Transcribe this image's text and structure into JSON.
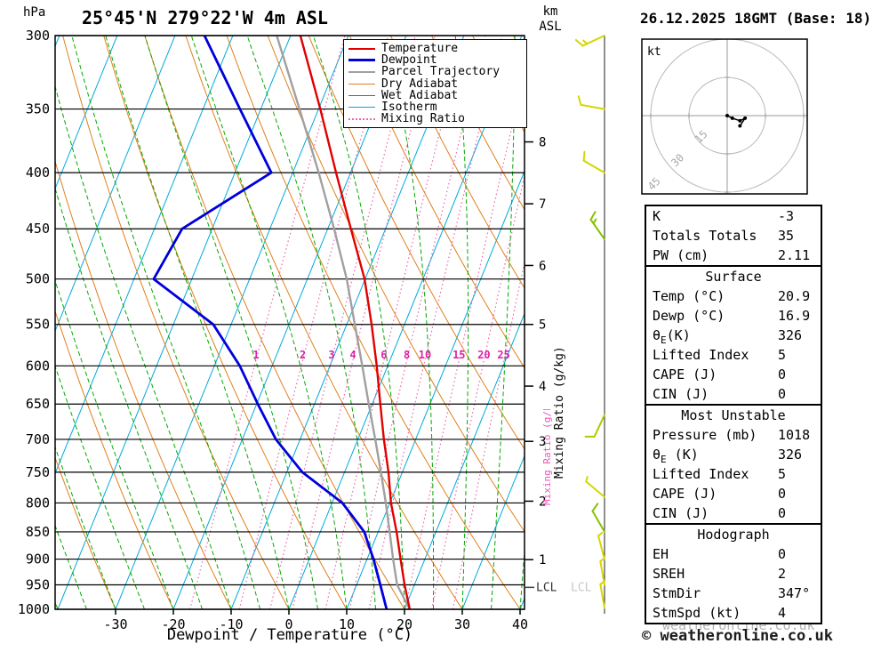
{
  "header": {
    "pressure_unit": "hPa",
    "station": "25°45'N 279°22'W 4m ASL",
    "altitude_km": "km",
    "altitude_asl": "ASL",
    "datetime": "26.12.2025 18GMT (Base: 18)"
  },
  "axes": {
    "xlabel": "Dewpoint / Temperature (°C)",
    "x_ticks": [
      -30,
      -20,
      -10,
      0,
      10,
      20,
      30,
      40
    ],
    "pressure_levels": [
      300,
      350,
      400,
      450,
      500,
      550,
      600,
      650,
      700,
      750,
      800,
      850,
      900,
      950,
      1000
    ],
    "mixing_ratio_label": "Mixing Ratio (g/kg)",
    "lcl_label": "LCL"
  },
  "legend": [
    {
      "label": "Temperature",
      "color": "#e10000",
      "style": "solid",
      "width": 2.5
    },
    {
      "label": "Dewpoint",
      "color": "#0000dd",
      "style": "solid",
      "width": 3
    },
    {
      "label": "Parcel Trajectory",
      "color": "#a0a0a0",
      "style": "solid",
      "width": 2.5
    },
    {
      "label": "Dry Adiabat",
      "color": "#e0801c",
      "style": "solid",
      "width": 1.5
    },
    {
      "label": "Wet Adiabat",
      "color": "#00aa00",
      "style": "solid",
      "width": 1.5
    },
    {
      "label": "Isotherm",
      "color": "#00aadd",
      "style": "solid",
      "width": 1.5
    },
    {
      "label": "Mixing Ratio",
      "color": "#ee66aa",
      "style": "dotted",
      "width": 2
    }
  ],
  "chart_data": {
    "type": "skewt-log-p",
    "title": "25°45'N 279°22'W 4m ASL",
    "datetime": "26.12.2025 18GMT (Base: 18)",
    "xlabel": "Dewpoint / Temperature (°C)",
    "x_range_c": [
      -40,
      42
    ],
    "pressure_range_hpa": [
      300,
      1000
    ],
    "pressure_hpa": [
      1000,
      950,
      900,
      850,
      800,
      750,
      700,
      650,
      600,
      550,
      500,
      450,
      400,
      350,
      300
    ],
    "temperature_c": [
      20.9,
      18.3,
      15.8,
      13.2,
      10.2,
      7.6,
      4.5,
      1.4,
      -1.9,
      -5.7,
      -10.1,
      -16.0,
      -22.5,
      -29.7,
      -38.3
    ],
    "dewpoint_c": [
      16.9,
      14.1,
      11.1,
      7.6,
      1.8,
      -7.3,
      -14.2,
      -19.8,
      -25.6,
      -33.1,
      -46.6,
      -45.2,
      -33.7,
      -43.6,
      -54.9
    ],
    "parcel_c": [
      20.9,
      17.0,
      14.5,
      12.0,
      9.3,
      6.3,
      3.0,
      -0.6,
      -4.4,
      -8.6,
      -13.2,
      -18.9,
      -25.5,
      -33.3,
      -42.4
    ],
    "lcl_hpa": 955,
    "km_asl_ticks": [
      {
        "km": 1,
        "p": 901
      },
      {
        "km": 2,
        "p": 797
      },
      {
        "km": 3,
        "p": 703
      },
      {
        "km": 4,
        "p": 626
      },
      {
        "km": 5,
        "p": 550
      },
      {
        "km": 6,
        "p": 486
      },
      {
        "km": 7,
        "p": 427
      },
      {
        "km": 8,
        "p": 375
      }
    ],
    "mixing_ratio_gkg": [
      1,
      2,
      3,
      4,
      6,
      8,
      10,
      15,
      20,
      25
    ],
    "isotherms_c": {
      "min": -80,
      "max": 40,
      "step": 10
    },
    "dry_adiabats_c": {
      "min": -40,
      "max": 110,
      "step": 10
    },
    "wet_adiabats_c": {
      "min": -40,
      "max": 40,
      "step": 5
    },
    "wind_barbs": [
      {
        "p": 300,
        "dir": 245,
        "spd": 15,
        "color": "#d6d600"
      },
      {
        "p": 350,
        "dir": 280,
        "spd": 10,
        "color": "#d6d600"
      },
      {
        "p": 400,
        "dir": 300,
        "spd": 10,
        "color": "#d6d600"
      },
      {
        "p": 460,
        "dir": 325,
        "spd": 15,
        "color": "#84c400"
      },
      {
        "p": 665,
        "dir": 205,
        "spd": 10,
        "color": "#aace00"
      },
      {
        "p": 790,
        "dir": 310,
        "spd": 5,
        "color": "#d6d600"
      },
      {
        "p": 850,
        "dir": 330,
        "spd": 10,
        "color": "#84c400"
      },
      {
        "p": 900,
        "dir": 345,
        "spd": 5,
        "color": "#d6d600"
      },
      {
        "p": 950,
        "dir": 350,
        "spd": 5,
        "color": "#d6d600"
      },
      {
        "p": 997,
        "dir": 350,
        "spd": 5,
        "color": "#d6d600"
      }
    ],
    "colors": {
      "temperature": "#e10000",
      "dewpoint": "#0000dd",
      "parcel": "#a0a0a0",
      "dry_adiabat": "#e0801c",
      "wet_adiabat": "#00aa00",
      "isotherm": "#00aadd",
      "mixing_ratio": "#ee66aa",
      "mixing_ratio_label": "#dd22aa",
      "pressure_line": "#000000"
    }
  },
  "hodograph": {
    "unit": "kt",
    "rings": [
      15,
      30,
      45
    ],
    "ring_labels": [
      "15",
      "30",
      "45"
    ],
    "trace_uv_kt": [
      [
        0,
        0
      ],
      [
        2,
        -1
      ],
      [
        5,
        -2
      ],
      [
        7,
        -1
      ],
      [
        5,
        -4
      ]
    ]
  },
  "table": {
    "sections": [
      {
        "header": null,
        "rows": [
          [
            "K",
            "-3"
          ],
          [
            "Totals Totals",
            "35"
          ],
          [
            "PW (cm)",
            "2.11"
          ]
        ]
      },
      {
        "header": "Surface",
        "rows": [
          [
            "Temp (°C)",
            "20.9"
          ],
          [
            "Dewp (°C)",
            "16.9"
          ],
          [
            "θE(K)",
            "326"
          ],
          [
            "Lifted Index",
            "5"
          ],
          [
            "CAPE (J)",
            "0"
          ],
          [
            "CIN (J)",
            "0"
          ]
        ]
      },
      {
        "header": "Most Unstable",
        "rows": [
          [
            "Pressure (mb)",
            "1018"
          ],
          [
            "θE (K)",
            "326"
          ],
          [
            "Lifted Index",
            "5"
          ],
          [
            "CAPE (J)",
            "0"
          ],
          [
            "CIN (J)",
            "0"
          ]
        ]
      },
      {
        "header": "Hodograph",
        "rows": [
          [
            "EH",
            "0"
          ],
          [
            "SREH",
            "2"
          ],
          [
            "StmDir",
            "347°"
          ],
          [
            "StmSpd (kt)",
            "4"
          ]
        ]
      }
    ]
  },
  "watermark": "© weatheronline.co.uk",
  "watermark_echo": "weatheronline.co.uk"
}
